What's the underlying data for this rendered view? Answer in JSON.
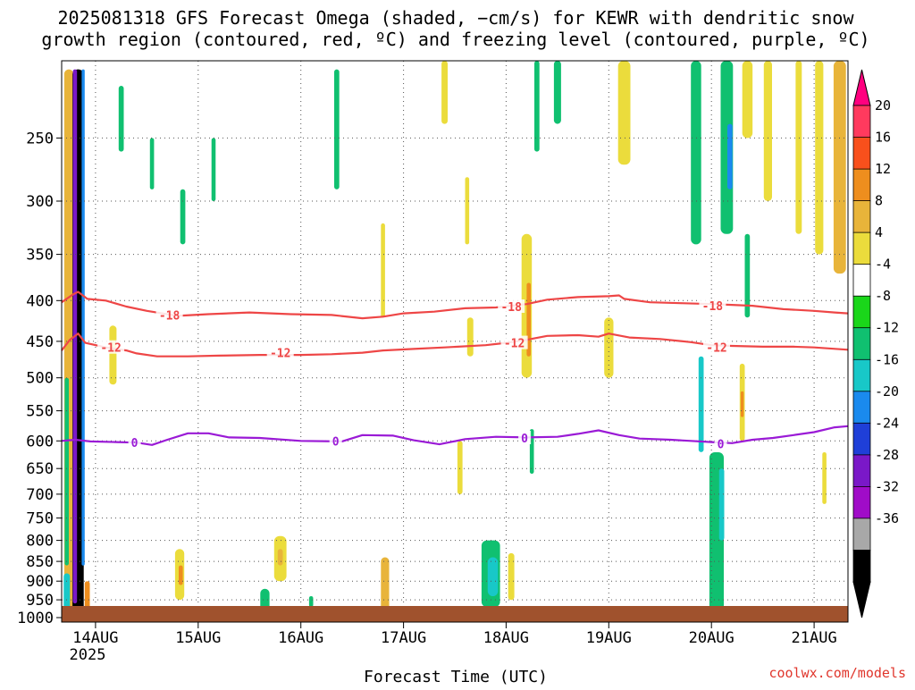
{
  "chart_data": {
    "type": "heatmap",
    "title": {
      "line1": "2025081318 GFS Forecast Omega (shaded, −cm/s) for KEWR with dendritic snow",
      "line2": "growth region (contoured, red, ºC) and freezing level (contoured, purple, ºC)"
    },
    "xlabel": "Forecast Time (UTC)",
    "ylabel": "",
    "credit": "coolwx.com/models",
    "x_ticks": [
      "14AUG",
      "15AUG",
      "16AUG",
      "17AUG",
      "18AUG",
      "19AUG",
      "20AUG",
      "21AUG"
    ],
    "x_year_label": "2025",
    "y_ticks": [
      250,
      300,
      350,
      400,
      450,
      500,
      550,
      600,
      650,
      700,
      750,
      800,
      850,
      900,
      950,
      1000
    ],
    "y_range_hpa": [
      200,
      1013
    ],
    "y_scale": "log-pressure",
    "grid": true,
    "colorbar": {
      "labels": [
        "20",
        "16",
        "12",
        "8",
        "4",
        "-4",
        "-8",
        "-12",
        "-16",
        "-20",
        "-24",
        "-28",
        "-32",
        "-36"
      ],
      "colors": [
        "#ff3a5e",
        "#f8501c",
        "#ee8e1e",
        "#e8b43a",
        "#ebdc3c",
        "#ffffff",
        "#1ad61a",
        "#10c070",
        "#18c8c8",
        "#1a8aee",
        "#1f3fd8",
        "#7a18c8",
        "#a00cc8",
        "#a8a8a8",
        "#000000"
      ],
      "top_arrow_color": "#ff007f",
      "bottom_arrow_color": "#000000"
    },
    "contours": [
      {
        "name": "-18",
        "color": "#ee4646",
        "label_points": [
          {
            "day": 14.72,
            "p": 417
          },
          {
            "day": 18.05,
            "p": 407
          },
          {
            "day": 20.01,
            "p": 406
          }
        ],
        "points": [
          [
            13.67,
            402
          ],
          [
            13.78,
            393
          ],
          [
            13.83,
            390
          ],
          [
            13.92,
            398
          ],
          [
            14.1,
            400
          ],
          [
            14.3,
            407
          ],
          [
            14.5,
            412
          ],
          [
            14.8,
            418
          ],
          [
            15.1,
            416
          ],
          [
            15.5,
            414
          ],
          [
            15.9,
            416
          ],
          [
            16.3,
            417
          ],
          [
            16.6,
            421
          ],
          [
            16.8,
            419
          ],
          [
            17.0,
            415
          ],
          [
            17.3,
            413
          ],
          [
            17.6,
            409
          ],
          [
            17.9,
            408
          ],
          [
            18.2,
            404
          ],
          [
            18.4,
            399
          ],
          [
            18.7,
            396
          ],
          [
            19.0,
            395
          ],
          [
            19.1,
            394
          ],
          [
            19.15,
            398
          ],
          [
            19.4,
            402
          ],
          [
            19.7,
            403
          ],
          [
            20.0,
            404
          ],
          [
            20.2,
            405
          ],
          [
            20.4,
            406
          ],
          [
            20.7,
            410
          ],
          [
            20.85,
            411
          ],
          [
            21.0,
            412
          ],
          [
            21.2,
            414
          ],
          [
            21.33,
            415
          ]
        ]
      },
      {
        "name": "-12",
        "color": "#ee4646",
        "label_points": [
          {
            "day": 14.15,
            "p": 458
          },
          {
            "day": 15.8,
            "p": 465
          },
          {
            "day": 18.08,
            "p": 452
          },
          {
            "day": 20.05,
            "p": 458
          }
        ],
        "points": [
          [
            13.67,
            462
          ],
          [
            13.75,
            448
          ],
          [
            13.83,
            440
          ],
          [
            13.9,
            452
          ],
          [
            14.1,
            458
          ],
          [
            14.3,
            462
          ],
          [
            14.4,
            466
          ],
          [
            14.6,
            470
          ],
          [
            14.9,
            470
          ],
          [
            15.2,
            469
          ],
          [
            15.6,
            468
          ],
          [
            16.0,
            468
          ],
          [
            16.3,
            467
          ],
          [
            16.6,
            465
          ],
          [
            16.8,
            462
          ],
          [
            17.1,
            460
          ],
          [
            17.4,
            458
          ],
          [
            17.8,
            455
          ],
          [
            18.0,
            452
          ],
          [
            18.2,
            448
          ],
          [
            18.4,
            443
          ],
          [
            18.7,
            442
          ],
          [
            18.9,
            444
          ],
          [
            19.0,
            440
          ],
          [
            19.2,
            445
          ],
          [
            19.5,
            447
          ],
          [
            19.8,
            451
          ],
          [
            20.0,
            455
          ],
          [
            20.2,
            456
          ],
          [
            20.5,
            457
          ],
          [
            20.8,
            457
          ],
          [
            21.0,
            458
          ],
          [
            21.33,
            461
          ]
        ]
      },
      {
        "name": "0",
        "color": "#9a1ad6",
        "label_points": [
          {
            "day": 14.38,
            "p": 603
          },
          {
            "day": 16.34,
            "p": 600
          },
          {
            "day": 18.18,
            "p": 595
          },
          {
            "day": 20.09,
            "p": 605
          }
        ],
        "points": [
          [
            13.67,
            600
          ],
          [
            13.8,
            598
          ],
          [
            13.95,
            601
          ],
          [
            14.2,
            602
          ],
          [
            14.4,
            603
          ],
          [
            14.55,
            607
          ],
          [
            14.7,
            598
          ],
          [
            14.9,
            587
          ],
          [
            15.1,
            587
          ],
          [
            15.3,
            594
          ],
          [
            15.6,
            595
          ],
          [
            16.0,
            600
          ],
          [
            16.4,
            601
          ],
          [
            16.6,
            590
          ],
          [
            16.9,
            591
          ],
          [
            17.1,
            599
          ],
          [
            17.35,
            606
          ],
          [
            17.6,
            597
          ],
          [
            17.9,
            593
          ],
          [
            18.2,
            594
          ],
          [
            18.5,
            593
          ],
          [
            18.7,
            588
          ],
          [
            18.9,
            582
          ],
          [
            19.1,
            590
          ],
          [
            19.3,
            596
          ],
          [
            19.6,
            598
          ],
          [
            19.8,
            600
          ],
          [
            20.0,
            602
          ],
          [
            20.2,
            604
          ],
          [
            20.4,
            598
          ],
          [
            20.6,
            595
          ],
          [
            20.8,
            590
          ],
          [
            21.0,
            585
          ],
          [
            21.2,
            577
          ],
          [
            21.33,
            575
          ]
        ]
      }
    ],
    "omega_regions": [
      {
        "day": 13.74,
        "p_top": 205,
        "p_bot": 1000,
        "w": 0.09,
        "value": 10
      },
      {
        "day": 13.83,
        "p_top": 205,
        "p_bot": 990,
        "w": 0.11,
        "value": -36
      },
      {
        "day": 13.8,
        "p_top": 205,
        "p_bot": 960,
        "w": 0.04,
        "value": -24
      },
      {
        "day": 13.88,
        "p_top": 205,
        "p_bot": 860,
        "w": 0.03,
        "value": -16
      },
      {
        "day": 13.72,
        "p_top": 880,
        "p_bot": 995,
        "w": 0.06,
        "value": -12
      },
      {
        "day": 13.92,
        "p_top": 900,
        "p_bot": 990,
        "w": 0.05,
        "value": 14
      },
      {
        "day": 13.72,
        "p_top": 500,
        "p_bot": 860,
        "w": 0.04,
        "value": -8
      },
      {
        "day": 14.17,
        "p_top": 430,
        "p_bot": 510,
        "w": 0.07,
        "value": 6
      },
      {
        "day": 14.25,
        "p_top": 215,
        "p_bot": 260,
        "w": 0.05,
        "value": -8
      },
      {
        "day": 14.55,
        "p_top": 250,
        "p_bot": 290,
        "w": 0.04,
        "value": -8
      },
      {
        "day": 14.85,
        "p_top": 290,
        "p_bot": 340,
        "w": 0.05,
        "value": -8
      },
      {
        "day": 15.15,
        "p_top": 250,
        "p_bot": 300,
        "w": 0.04,
        "value": -8
      },
      {
        "day": 14.82,
        "p_top": 820,
        "p_bot": 950,
        "w": 0.09,
        "value": 7
      },
      {
        "day": 14.83,
        "p_top": 860,
        "p_bot": 910,
        "w": 0.04,
        "value": 12
      },
      {
        "day": 15.8,
        "p_top": 790,
        "p_bot": 900,
        "w": 0.12,
        "value": 7
      },
      {
        "day": 15.8,
        "p_top": 820,
        "p_bot": 860,
        "w": 0.05,
        "value": 10
      },
      {
        "day": 15.65,
        "p_top": 920,
        "p_bot": 990,
        "w": 0.09,
        "value": -10
      },
      {
        "day": 16.1,
        "p_top": 940,
        "p_bot": 970,
        "w": 0.04,
        "value": -8
      },
      {
        "day": 16.35,
        "p_top": 205,
        "p_bot": 290,
        "w": 0.05,
        "value": -8
      },
      {
        "day": 16.8,
        "p_top": 320,
        "p_bot": 420,
        "w": 0.04,
        "value": 6
      },
      {
        "day": 16.82,
        "p_top": 840,
        "p_bot": 980,
        "w": 0.08,
        "value": 8
      },
      {
        "day": 17.4,
        "p_top": 200,
        "p_bot": 240,
        "w": 0.06,
        "value": 6
      },
      {
        "day": 17.62,
        "p_top": 280,
        "p_bot": 340,
        "w": 0.04,
        "value": 6
      },
      {
        "day": 17.65,
        "p_top": 420,
        "p_bot": 470,
        "w": 0.06,
        "value": 6
      },
      {
        "day": 17.55,
        "p_top": 600,
        "p_bot": 700,
        "w": 0.05,
        "value": 6
      },
      {
        "day": 17.85,
        "p_top": 800,
        "p_bot": 970,
        "w": 0.18,
        "value": -10
      },
      {
        "day": 17.87,
        "p_top": 840,
        "p_bot": 940,
        "w": 0.1,
        "value": -14
      },
      {
        "day": 18.05,
        "p_top": 830,
        "p_bot": 950,
        "w": 0.06,
        "value": 7
      },
      {
        "day": 18.2,
        "p_top": 330,
        "p_bot": 500,
        "w": 0.1,
        "value": 7
      },
      {
        "day": 18.22,
        "p_top": 380,
        "p_bot": 470,
        "w": 0.04,
        "value": 12
      },
      {
        "day": 18.25,
        "p_top": 580,
        "p_bot": 660,
        "w": 0.04,
        "value": -8
      },
      {
        "day": 18.3,
        "p_top": 200,
        "p_bot": 260,
        "w": 0.05,
        "value": -8
      },
      {
        "day": 18.5,
        "p_top": 200,
        "p_bot": 240,
        "w": 0.07,
        "value": -8
      },
      {
        "day": 19.15,
        "p_top": 200,
        "p_bot": 270,
        "w": 0.12,
        "value": 6
      },
      {
        "day": 19.0,
        "p_top": 420,
        "p_bot": 500,
        "w": 0.09,
        "value": 6
      },
      {
        "day": 19.85,
        "p_top": 200,
        "p_bot": 340,
        "w": 0.1,
        "value": -8
      },
      {
        "day": 20.15,
        "p_top": 200,
        "p_bot": 330,
        "w": 0.12,
        "value": -10
      },
      {
        "day": 20.18,
        "p_top": 240,
        "p_bot": 290,
        "w": 0.05,
        "value": -18
      },
      {
        "day": 20.35,
        "p_top": 200,
        "p_bot": 250,
        "w": 0.1,
        "value": 6
      },
      {
        "day": 20.55,
        "p_top": 200,
        "p_bot": 300,
        "w": 0.08,
        "value": 6
      },
      {
        "day": 20.85,
        "p_top": 200,
        "p_bot": 330,
        "w": 0.06,
        "value": 7
      },
      {
        "day": 21.05,
        "p_top": 200,
        "p_bot": 350,
        "w": 0.08,
        "value": 7
      },
      {
        "day": 21.25,
        "p_top": 200,
        "p_bot": 370,
        "w": 0.12,
        "value": 8
      },
      {
        "day": 19.9,
        "p_top": 470,
        "p_bot": 620,
        "w": 0.05,
        "value": -12
      },
      {
        "day": 20.05,
        "p_top": 620,
        "p_bot": 980,
        "w": 0.14,
        "value": -9
      },
      {
        "day": 20.1,
        "p_top": 650,
        "p_bot": 800,
        "w": 0.05,
        "value": -12
      },
      {
        "day": 20.3,
        "p_top": 480,
        "p_bot": 600,
        "w": 0.05,
        "value": 6
      },
      {
        "day": 20.3,
        "p_top": 520,
        "p_bot": 560,
        "w": 0.03,
        "value": 12
      },
      {
        "day": 20.35,
        "p_top": 330,
        "p_bot": 420,
        "w": 0.05,
        "value": -8
      },
      {
        "day": 21.1,
        "p_top": 620,
        "p_bot": 720,
        "w": 0.04,
        "value": 6
      }
    ]
  }
}
